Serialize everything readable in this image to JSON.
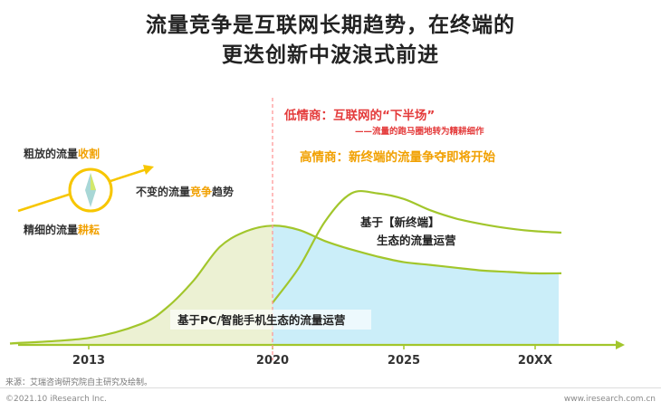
{
  "title_line1": "流量竞争是互联网长期趋势，在终端的",
  "title_line2": "更迭创新中波浪式前进",
  "chart_data": {
    "type": "area",
    "x_ticks": [
      "2013",
      "2020",
      "2025",
      "20XX"
    ],
    "series": [
      {
        "label": "基于PC/智能手机生态的流量运营",
        "x": [
          2010,
          2013,
          2015,
          2016,
          2017,
          2018,
          2019,
          2020,
          2021,
          2022,
          2023,
          2024,
          2025,
          2026,
          2027,
          2028,
          2029,
          2030,
          2031
        ],
        "y": [
          1,
          5,
          15,
          27,
          46,
          70,
          81,
          85,
          82,
          74,
          68,
          63,
          59,
          57,
          55,
          53,
          52,
          51,
          51
        ]
      },
      {
        "label": "基于【新终端】生态的流量运营",
        "x": [
          2020,
          2021,
          2022,
          2023,
          2024,
          2025,
          2026,
          2027,
          2028,
          2029,
          2030,
          2031
        ],
        "y": [
          30,
          55,
          88,
          108,
          108,
          104,
          96,
          90,
          86,
          83,
          81,
          80
        ]
      }
    ],
    "divider_x": 2020,
    "legend_position": "none"
  },
  "annotations": {
    "low_eq": "低情商：互联网的“下半场”",
    "low_eq_sub": "——流量的跑马圈地转为精耕细作",
    "high_eq": "高情商：新终端的流量争夺即将开始",
    "new_terminal_line1": "基于【新终端】",
    "new_terminal_line2": "生态的流量运营",
    "pc_label": "基于PC/智能手机生态的流量运营",
    "trend_label": "不变的流量竞争趋势",
    "trend_label_plain": "不变的流量",
    "trend_label_accent": "竞争",
    "trend_label_end": "趋势",
    "rough_plain": "粗放的流量",
    "rough_accent": "收割",
    "fine_plain": "精细的流量",
    "fine_accent": "耕耘"
  },
  "colors": {
    "green": "#a2c62c",
    "green_fill": "#ecf1d3",
    "blue_fill": "#cbeef9",
    "red": "#e43b3b",
    "orange": "#f1a000",
    "yellow": "#f7c600",
    "divider": "#ff9999"
  },
  "footer": {
    "source": "来源：艾瑞咨询研究院自主研究及绘制。",
    "copyright": "©2021.10 iResearch Inc.",
    "site": "www.iresearch.com.cn"
  }
}
